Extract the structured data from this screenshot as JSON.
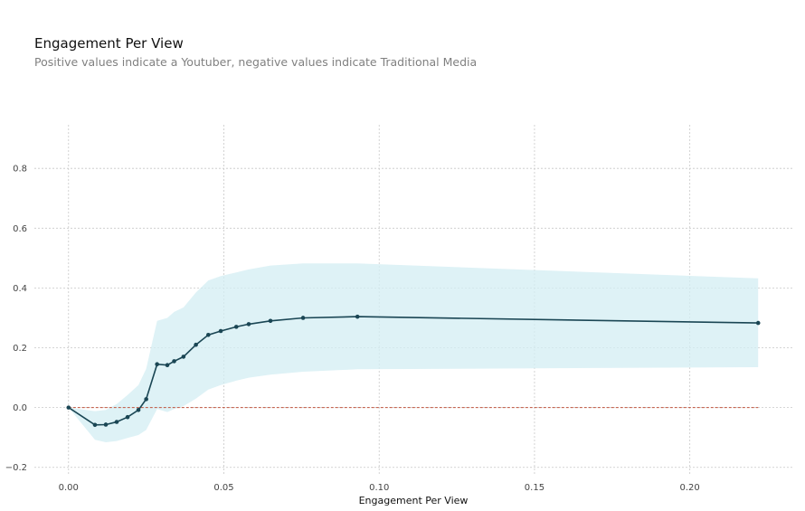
{
  "chart_data": {
    "type": "line",
    "title": "Engagement Per View",
    "subtitle": "Positive values indicate a Youtuber, negative values indicate Traditional Media",
    "xlabel": "Engagement Per View",
    "ylabel": "",
    "xlim": [
      -0.011,
      0.233
    ],
    "ylim": [
      -0.225,
      0.97
    ],
    "xticks": [
      0.0,
      0.05,
      0.1,
      0.15,
      0.2
    ],
    "xtick_labels": [
      "0.00",
      "0.05",
      "0.10",
      "0.15",
      "0.20"
    ],
    "yticks": [
      -0.2,
      0.0,
      0.2,
      0.4,
      0.6,
      0.8
    ],
    "ytick_labels": [
      "−0.2",
      "0.0",
      "0.2",
      "0.4",
      "0.6",
      "0.8"
    ],
    "grid": true,
    "baseline": 0.0,
    "colors": {
      "line": "#1a4654",
      "band": "#d3eef3",
      "baseline": "#c0553f",
      "grid": "#c8c8c8"
    },
    "series": [
      {
        "values": [
          {
            "x": 0.0,
            "y": 0.0,
            "lo": 0.0,
            "hi": 0.0
          },
          {
            "x": 0.0085,
            "y": -0.058,
            "lo": -0.108,
            "hi": -0.012
          },
          {
            "x": 0.012,
            "y": -0.057,
            "lo": -0.116,
            "hi": -0.008
          },
          {
            "x": 0.0155,
            "y": -0.048,
            "lo": -0.112,
            "hi": 0.012
          },
          {
            "x": 0.019,
            "y": -0.032,
            "lo": -0.102,
            "hi": 0.042
          },
          {
            "x": 0.0225,
            "y": -0.008,
            "lo": -0.092,
            "hi": 0.075
          },
          {
            "x": 0.025,
            "y": 0.028,
            "lo": -0.075,
            "hi": 0.13
          },
          {
            "x": 0.0285,
            "y": 0.145,
            "lo": -0.005,
            "hi": 0.29
          },
          {
            "x": 0.0318,
            "y": 0.142,
            "lo": -0.015,
            "hi": 0.3
          },
          {
            "x": 0.034,
            "y": 0.155,
            "lo": -0.005,
            "hi": 0.32
          },
          {
            "x": 0.037,
            "y": 0.17,
            "lo": 0.005,
            "hi": 0.335
          },
          {
            "x": 0.041,
            "y": 0.21,
            "lo": 0.03,
            "hi": 0.385
          },
          {
            "x": 0.045,
            "y": 0.243,
            "lo": 0.06,
            "hi": 0.425
          },
          {
            "x": 0.049,
            "y": 0.256,
            "lo": 0.075,
            "hi": 0.44
          },
          {
            "x": 0.054,
            "y": 0.27,
            "lo": 0.09,
            "hi": 0.452
          },
          {
            "x": 0.058,
            "y": 0.279,
            "lo": 0.1,
            "hi": 0.462
          },
          {
            "x": 0.065,
            "y": 0.29,
            "lo": 0.11,
            "hi": 0.475
          },
          {
            "x": 0.0755,
            "y": 0.3,
            "lo": 0.12,
            "hi": 0.482
          },
          {
            "x": 0.093,
            "y": 0.304,
            "lo": 0.128,
            "hi": 0.482
          },
          {
            "x": 0.222,
            "y": 0.283,
            "lo": 0.135,
            "hi": 0.432
          }
        ]
      }
    ]
  }
}
